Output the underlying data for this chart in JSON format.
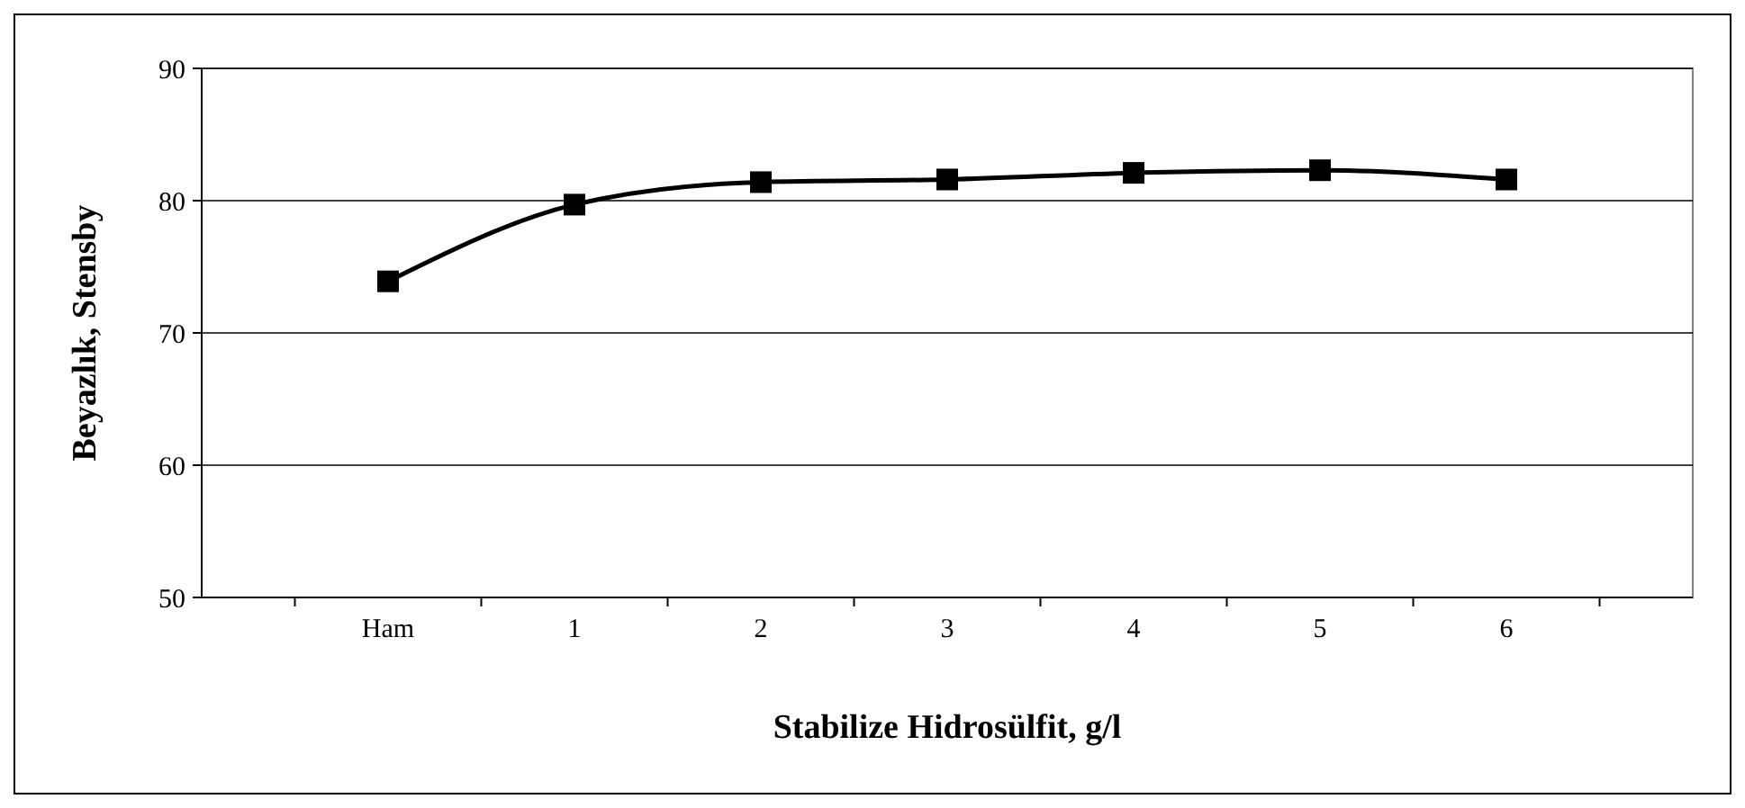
{
  "chart_data": {
    "type": "line",
    "xlabel": "Stabilize Hidrosülfit, g/l",
    "ylabel": "Beyazlık, Stensby",
    "categories": [
      null,
      "Ham",
      "1",
      "2",
      "3",
      "4",
      "5",
      "6",
      null
    ],
    "series": [
      {
        "color": "#000000",
        "values": [
          null,
          73.9,
          79.7,
          81.4,
          81.6,
          82.1,
          82.3,
          81.6,
          null
        ]
      }
    ],
    "ylim": [
      50,
      90
    ],
    "yticks": [
      50,
      60,
      70,
      80,
      90
    ],
    "grid": "y",
    "marker": "square",
    "line_style": "solid"
  }
}
